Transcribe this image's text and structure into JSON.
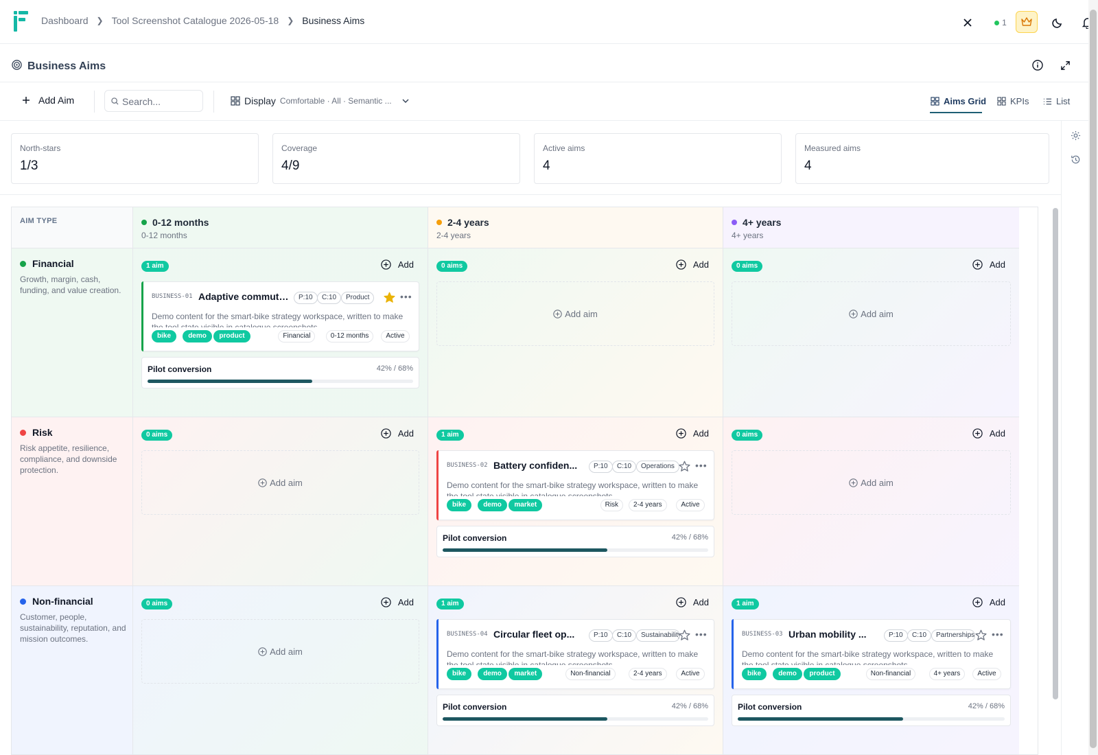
{
  "breadcrumb": [
    "Dashboard",
    "Tool Screenshot Catalogue 2026-05-18",
    "Business Aims"
  ],
  "topbar": {
    "online_count": "1"
  },
  "page": {
    "title": "Business Aims"
  },
  "toolbar": {
    "add_label": "Add Aim",
    "search_placeholder": "Search...",
    "display_label": "Display",
    "display_value": "Comfortable · All · Semantic ...",
    "views": [
      "Aims Grid",
      "KPIs",
      "List"
    ],
    "active_view": "Aims Grid"
  },
  "stats": [
    {
      "label": "North-stars",
      "value": "1/3"
    },
    {
      "label": "Coverage",
      "value": "4/9"
    },
    {
      "label": "Active aims",
      "value": "4"
    },
    {
      "label": "Measured aims",
      "value": "4"
    }
  ],
  "grid": {
    "corner_label": "AIM TYPE",
    "columns": [
      {
        "title": "0-12 months",
        "subtitle": "0-12 months",
        "color": "#16a34a"
      },
      {
        "title": "2-4 years",
        "subtitle": "2-4 years",
        "color": "#f59e0b"
      },
      {
        "title": "4+ years",
        "subtitle": "4+ years",
        "color": "#8b5cf6"
      }
    ],
    "rows": [
      {
        "title": "Financial",
        "desc": "Growth, margin, cash, funding, and value creation.",
        "color": "#16a34a"
      },
      {
        "title": "Risk",
        "desc": "Risk appetite, resilience, compliance, and downside protection.",
        "color": "#ef4444"
      },
      {
        "title": "Non-financial",
        "desc": "Customer, people, sustainability, reputation, and mission outcomes.",
        "color": "#2563eb"
      }
    ],
    "add_label": "Add",
    "add_aim_label": "Add aim",
    "cells": [
      [
        "1 aim",
        "0 aims",
        "0 aims"
      ],
      [
        "0 aims",
        "1 aim",
        "0 aims"
      ],
      [
        "0 aims",
        "1 aim",
        "1 aim"
      ]
    ]
  },
  "cards": [
    {
      "code": "BUSINESS-01",
      "title": "Adaptive commute...",
      "priority": "P:10",
      "confidence": "C:10",
      "area": "Product",
      "starred": true,
      "accent": "#16a34a",
      "desc": "Demo content for the smart-bike strategy workspace, written to make the tool state visible in catalogue screenshots.",
      "tags": [
        "bike",
        "demo",
        "product"
      ],
      "meta": [
        "Financial",
        "0-12 months",
        "Active"
      ],
      "kpi": {
        "name": "Pilot conversion",
        "value": "42% / 68%",
        "progress": 0.62
      }
    },
    {
      "code": "BUSINESS-02",
      "title": "Battery confiden...",
      "priority": "P:10",
      "confidence": "C:10",
      "area": "Operations",
      "starred": false,
      "accent": "#ef4444",
      "desc": "Demo content for the smart-bike strategy workspace, written to make the tool state visible in catalogue screenshots.",
      "tags": [
        "bike",
        "demo",
        "market"
      ],
      "meta": [
        "Risk",
        "2-4 years",
        "Active"
      ],
      "kpi": {
        "name": "Pilot conversion",
        "value": "42% / 68%",
        "progress": 0.62
      }
    },
    {
      "code": "BUSINESS-04",
      "title": "Circular fleet op...",
      "priority": "P:10",
      "confidence": "C:10",
      "area": "Sustainability",
      "starred": false,
      "accent": "#2563eb",
      "desc": "Demo content for the smart-bike strategy workspace, written to make the tool state visible in catalogue screenshots.",
      "tags": [
        "bike",
        "demo",
        "market"
      ],
      "meta": [
        "Non-financial",
        "2-4 years",
        "Active"
      ],
      "kpi": {
        "name": "Pilot conversion",
        "value": "42% / 68%",
        "progress": 0.62
      }
    },
    {
      "code": "BUSINESS-03",
      "title": "Urban mobility ...",
      "priority": "P:10",
      "confidence": "C:10",
      "area": "Partnerships",
      "starred": false,
      "accent": "#2563eb",
      "desc": "Demo content for the smart-bike strategy workspace, written to make the tool state visible in catalogue screenshots.",
      "tags": [
        "bike",
        "demo",
        "product"
      ],
      "meta": [
        "Non-financial",
        "4+ years",
        "Active"
      ],
      "kpi": {
        "name": "Pilot conversion",
        "value": "42% / 68%",
        "progress": 0.62
      }
    }
  ],
  "icons": [
    "app-logo",
    "close-icon",
    "status-dot",
    "crown-icon",
    "moon-icon",
    "bell-icon",
    "target-icon",
    "info-icon",
    "expand-icon",
    "plus-icon",
    "search-icon",
    "grid-icon",
    "chevron-down-icon",
    "list-icon",
    "gear-icon",
    "history-icon",
    "star-icon",
    "more-icon",
    "plus-circle-icon"
  ]
}
